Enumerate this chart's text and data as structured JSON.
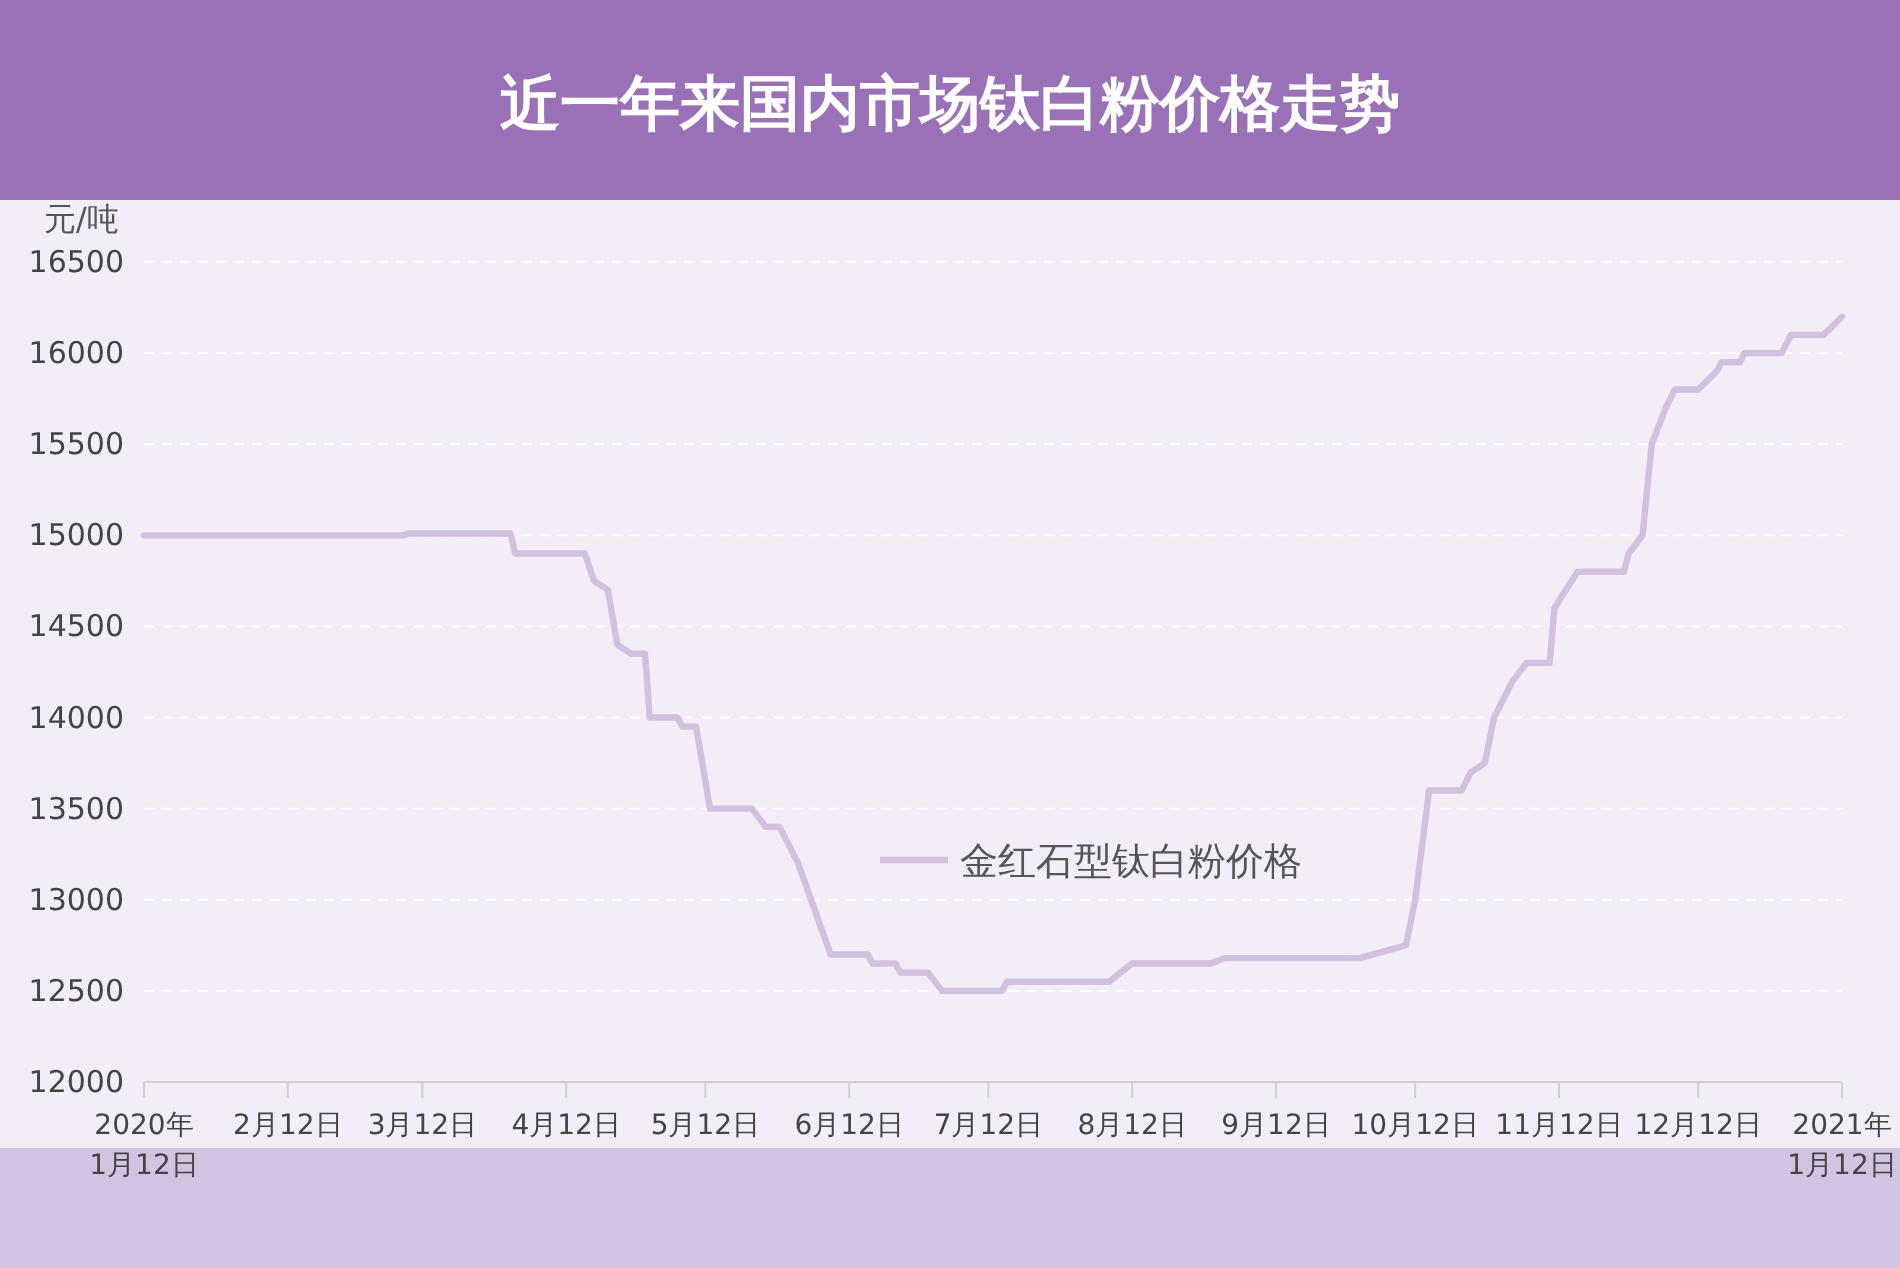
{
  "chart_data": {
    "type": "line",
    "title": "近一年来国内市场钛白粉价格走势",
    "ylabel": "元/吨",
    "x": [
      "2020-01-12",
      "2020-03-08",
      "2020-03-09",
      "2020-03-31",
      "2020-04-01",
      "2020-04-16",
      "2020-04-18",
      "2020-04-21",
      "2020-04-23",
      "2020-04-26",
      "2020-04-29",
      "2020-04-30",
      "2020-05-06",
      "2020-05-07",
      "2020-05-10",
      "2020-05-13",
      "2020-05-22",
      "2020-05-25",
      "2020-05-28",
      "2020-06-01",
      "2020-06-08",
      "2020-06-16",
      "2020-06-17",
      "2020-06-22",
      "2020-06-23",
      "2020-06-29",
      "2020-07-02",
      "2020-07-15",
      "2020-07-16",
      "2020-08-07",
      "2020-08-12",
      "2020-08-29",
      "2020-09-01",
      "2020-09-30",
      "2020-10-10",
      "2020-10-12",
      "2020-10-15",
      "2020-10-22",
      "2020-10-24",
      "2020-10-27",
      "2020-10-29",
      "2020-11-02",
      "2020-11-05",
      "2020-11-10",
      "2020-11-11",
      "2020-11-16",
      "2020-11-26",
      "2020-11-27",
      "2020-11-30",
      "2020-12-02",
      "2020-12-05",
      "2020-12-07",
      "2020-12-12",
      "2020-12-16",
      "2020-12-17",
      "2020-12-21",
      "2020-12-22",
      "2020-12-30",
      "2021-01-01",
      "2021-01-08",
      "2021-01-12"
    ],
    "series": [
      {
        "name": "金红石型钛白粉价格",
        "color": "#d1c0e0",
        "values": [
          15000,
          15000,
          15010,
          15010,
          14900,
          14900,
          14750,
          14700,
          14400,
          14350,
          14350,
          14000,
          14000,
          13950,
          13950,
          13500,
          13500,
          13400,
          13400,
          13200,
          12700,
          12700,
          12650,
          12650,
          12600,
          12600,
          12500,
          12500,
          12550,
          12550,
          12650,
          12650,
          12680,
          12680,
          12750,
          13000,
          13600,
          13600,
          13700,
          13750,
          14000,
          14200,
          14300,
          14300,
          14600,
          14800,
          14800,
          14900,
          15000,
          15500,
          15700,
          15800,
          15800,
          15900,
          15950,
          15950,
          16000,
          16000,
          16100,
          16100,
          16200
        ]
      }
    ],
    "xlim": [
      "2020-01-12",
      "2021-01-12"
    ],
    "xticks": [
      {
        "value": "2020-01-12",
        "label": "2020年\n1月12日"
      },
      {
        "value": "2020-02-12",
        "label": "2月12日"
      },
      {
        "value": "2020-03-12",
        "label": "3月12日"
      },
      {
        "value": "2020-04-12",
        "label": "4月12日"
      },
      {
        "value": "2020-05-12",
        "label": "5月12日"
      },
      {
        "value": "2020-06-12",
        "label": "6月12日"
      },
      {
        "value": "2020-07-12",
        "label": "7月12日"
      },
      {
        "value": "2020-08-12",
        "label": "8月12日"
      },
      {
        "value": "2020-09-12",
        "label": "9月12日"
      },
      {
        "value": "2020-10-12",
        "label": "10月12日"
      },
      {
        "value": "2020-11-12",
        "label": "11月12日"
      },
      {
        "value": "2020-12-12",
        "label": "12月12日"
      },
      {
        "value": "2021-01-12",
        "label": "2021年\n1月12日"
      }
    ],
    "ylim": [
      12000,
      16500
    ],
    "yticks": [
      12000,
      12500,
      13000,
      13500,
      14000,
      14500,
      15000,
      15500,
      16000,
      16500
    ],
    "grid": "y",
    "legend": "center",
    "marker": "none",
    "line_style": "solid"
  }
}
